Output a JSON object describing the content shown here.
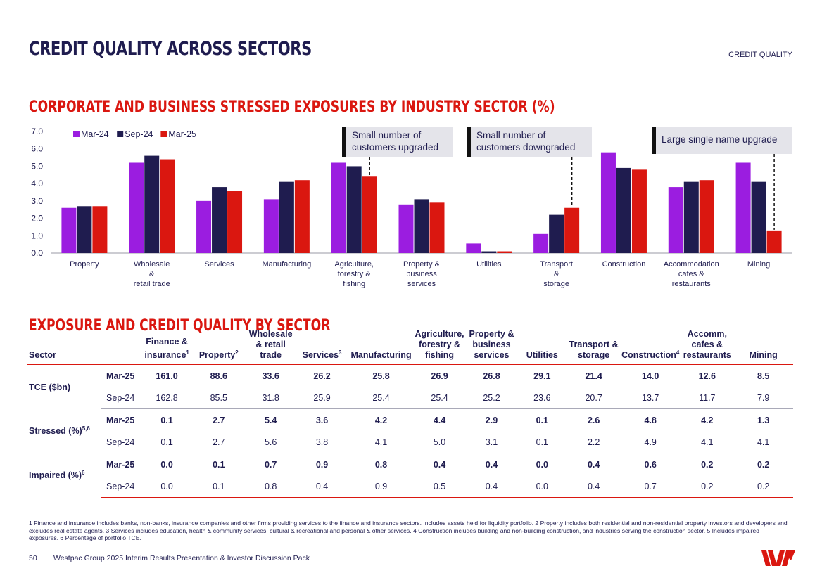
{
  "header": {
    "title": "CREDIT QUALITY ACROSS SECTORS",
    "section": "CREDIT QUALITY"
  },
  "chart_title": "CORPORATE AND BUSINESS STRESSED EXPOSURES BY INDUSTRY SECTOR (%)",
  "chart_data": {
    "type": "bar",
    "title": "CORPORATE AND BUSINESS STRESSED EXPOSURES BY INDUSTRY SECTOR (%)",
    "categories": [
      "Property",
      "Wholesale\n&\nretail trade",
      "Services",
      "Manufacturing",
      "Agriculture,\nforestry &\nfishing",
      "Property &\nbusiness\nservices",
      "Utilities",
      "Transport\n&\nstorage",
      "Construction",
      "Accommodation\ncafes &\nrestaurants",
      "Mining"
    ],
    "series": [
      {
        "name": "Mar-24",
        "color": "#9b1de0",
        "values": [
          2.6,
          5.2,
          3.0,
          3.1,
          5.2,
          2.8,
          0.55,
          1.1,
          5.8,
          3.8,
          5.2
        ]
      },
      {
        "name": "Sep-24",
        "color": "#1f1c4f",
        "values": [
          2.7,
          5.6,
          3.8,
          4.1,
          5.0,
          3.1,
          0.1,
          2.2,
          4.9,
          4.1,
          4.1
        ]
      },
      {
        "name": "Mar-25",
        "color": "#da1710",
        "values": [
          2.7,
          5.4,
          3.6,
          4.2,
          4.4,
          2.9,
          0.1,
          2.6,
          4.8,
          4.2,
          1.3
        ]
      }
    ],
    "yticks": [
      "7.0",
      "6.0",
      "5.0",
      "4.0",
      "3.0",
      "2.0",
      "1.0",
      "0.0"
    ],
    "ylim": [
      0,
      7
    ],
    "legend": "top-left",
    "annotations": [
      {
        "text": "Small number of customers upgraded",
        "category_index": 4,
        "series_index": 2
      },
      {
        "text": "Small number of customers downgraded",
        "category_index": 7,
        "series_index": 2
      },
      {
        "text": "Large single name upgrade",
        "category_index": 10,
        "series_index": 2
      }
    ]
  },
  "callouts": {
    "upgraded_line1": "Small number of",
    "upgraded_line2": "customers upgraded",
    "downgraded_line1": "Small number of",
    "downgraded_line2": "customers downgraded",
    "single_name": "Large single name upgrade"
  },
  "table_title": "EXPOSURE AND CREDIT QUALITY BY SECTOR",
  "table": {
    "headers": {
      "sector": "Sector",
      "finance_line1": "Finance &",
      "finance_line2": "insurance",
      "finance_sup": "1",
      "property": "Property",
      "property_sup": "2",
      "wholesale_line1": "Wholesale",
      "wholesale_line2": "& retail",
      "wholesale_line3": "trade",
      "services": "Services",
      "services_sup": "3",
      "manufacturing": "Manufacturing",
      "agriculture_line1": "Agriculture,",
      "agriculture_line2": "forestry &",
      "agriculture_line3": "fishing",
      "propbus_line1": "Property &",
      "propbus_line2": "business",
      "propbus_line3": "services",
      "utilities": "Utilities",
      "transport_line1": "Transport &",
      "transport_line2": "storage",
      "construction": "Construction",
      "construction_sup": "4",
      "accomm_line1": "Accomm,",
      "accomm_line2": "cafes &",
      "accomm_line3": "restaurants",
      "mining": "Mining"
    },
    "groups": [
      {
        "label": "TCE ($bn)",
        "sup": "",
        "rows": [
          {
            "period": "Mar-25",
            "values": [
              "161.0",
              "88.6",
              "33.6",
              "26.2",
              "25.8",
              "26.9",
              "26.8",
              "29.1",
              "21.4",
              "14.0",
              "12.6",
              "8.5"
            ]
          },
          {
            "period": "Sep-24",
            "values": [
              "162.8",
              "85.5",
              "31.8",
              "25.9",
              "25.4",
              "25.4",
              "25.2",
              "23.6",
              "20.7",
              "13.7",
              "11.7",
              "7.9"
            ]
          }
        ]
      },
      {
        "label": "Stressed (%)",
        "sup": "5,6",
        "rows": [
          {
            "period": "Mar-25",
            "values": [
              "0.1",
              "2.7",
              "5.4",
              "3.6",
              "4.2",
              "4.4",
              "2.9",
              "0.1",
              "2.6",
              "4.8",
              "4.2",
              "1.3"
            ]
          },
          {
            "period": "Sep-24",
            "values": [
              "0.1",
              "2.7",
              "5.6",
              "3.8",
              "4.1",
              "5.0",
              "3.1",
              "0.1",
              "2.2",
              "4.9",
              "4.1",
              "4.1"
            ]
          }
        ]
      },
      {
        "label": "Impaired (%)",
        "sup": "6",
        "rows": [
          {
            "period": "Mar-25",
            "values": [
              "0.0",
              "0.1",
              "0.7",
              "0.9",
              "0.8",
              "0.4",
              "0.4",
              "0.0",
              "0.4",
              "0.6",
              "0.2",
              "0.2"
            ]
          },
          {
            "period": "Sep-24",
            "values": [
              "0.0",
              "0.1",
              "0.8",
              "0.4",
              "0.9",
              "0.5",
              "0.4",
              "0.0",
              "0.4",
              "0.7",
              "0.2",
              "0.2"
            ]
          }
        ]
      }
    ]
  },
  "footnote": "1 Finance and insurance includes banks, non-banks, insurance companies and other firms providing services to the finance and insurance sectors. Includes assets held for liquidity portfolio. 2 Property includes both residential and non-residential property investors and developers and excludes real estate agents. 3 Services includes education, health & community services, cultural & recreational and personal & other services. 4 Construction includes building and non-building construction, and industries serving the construction sector. 5 Includes impaired exposures. 6 Percentage of portfolio TCE.",
  "footer": {
    "page_number": "50",
    "document": "Westpac Group 2025 Interim Results Presentation & Investor Discussion Pack"
  },
  "brand": {
    "red": "#da1710",
    "navy": "#1f1c4f",
    "purple": "#9b1de0"
  }
}
